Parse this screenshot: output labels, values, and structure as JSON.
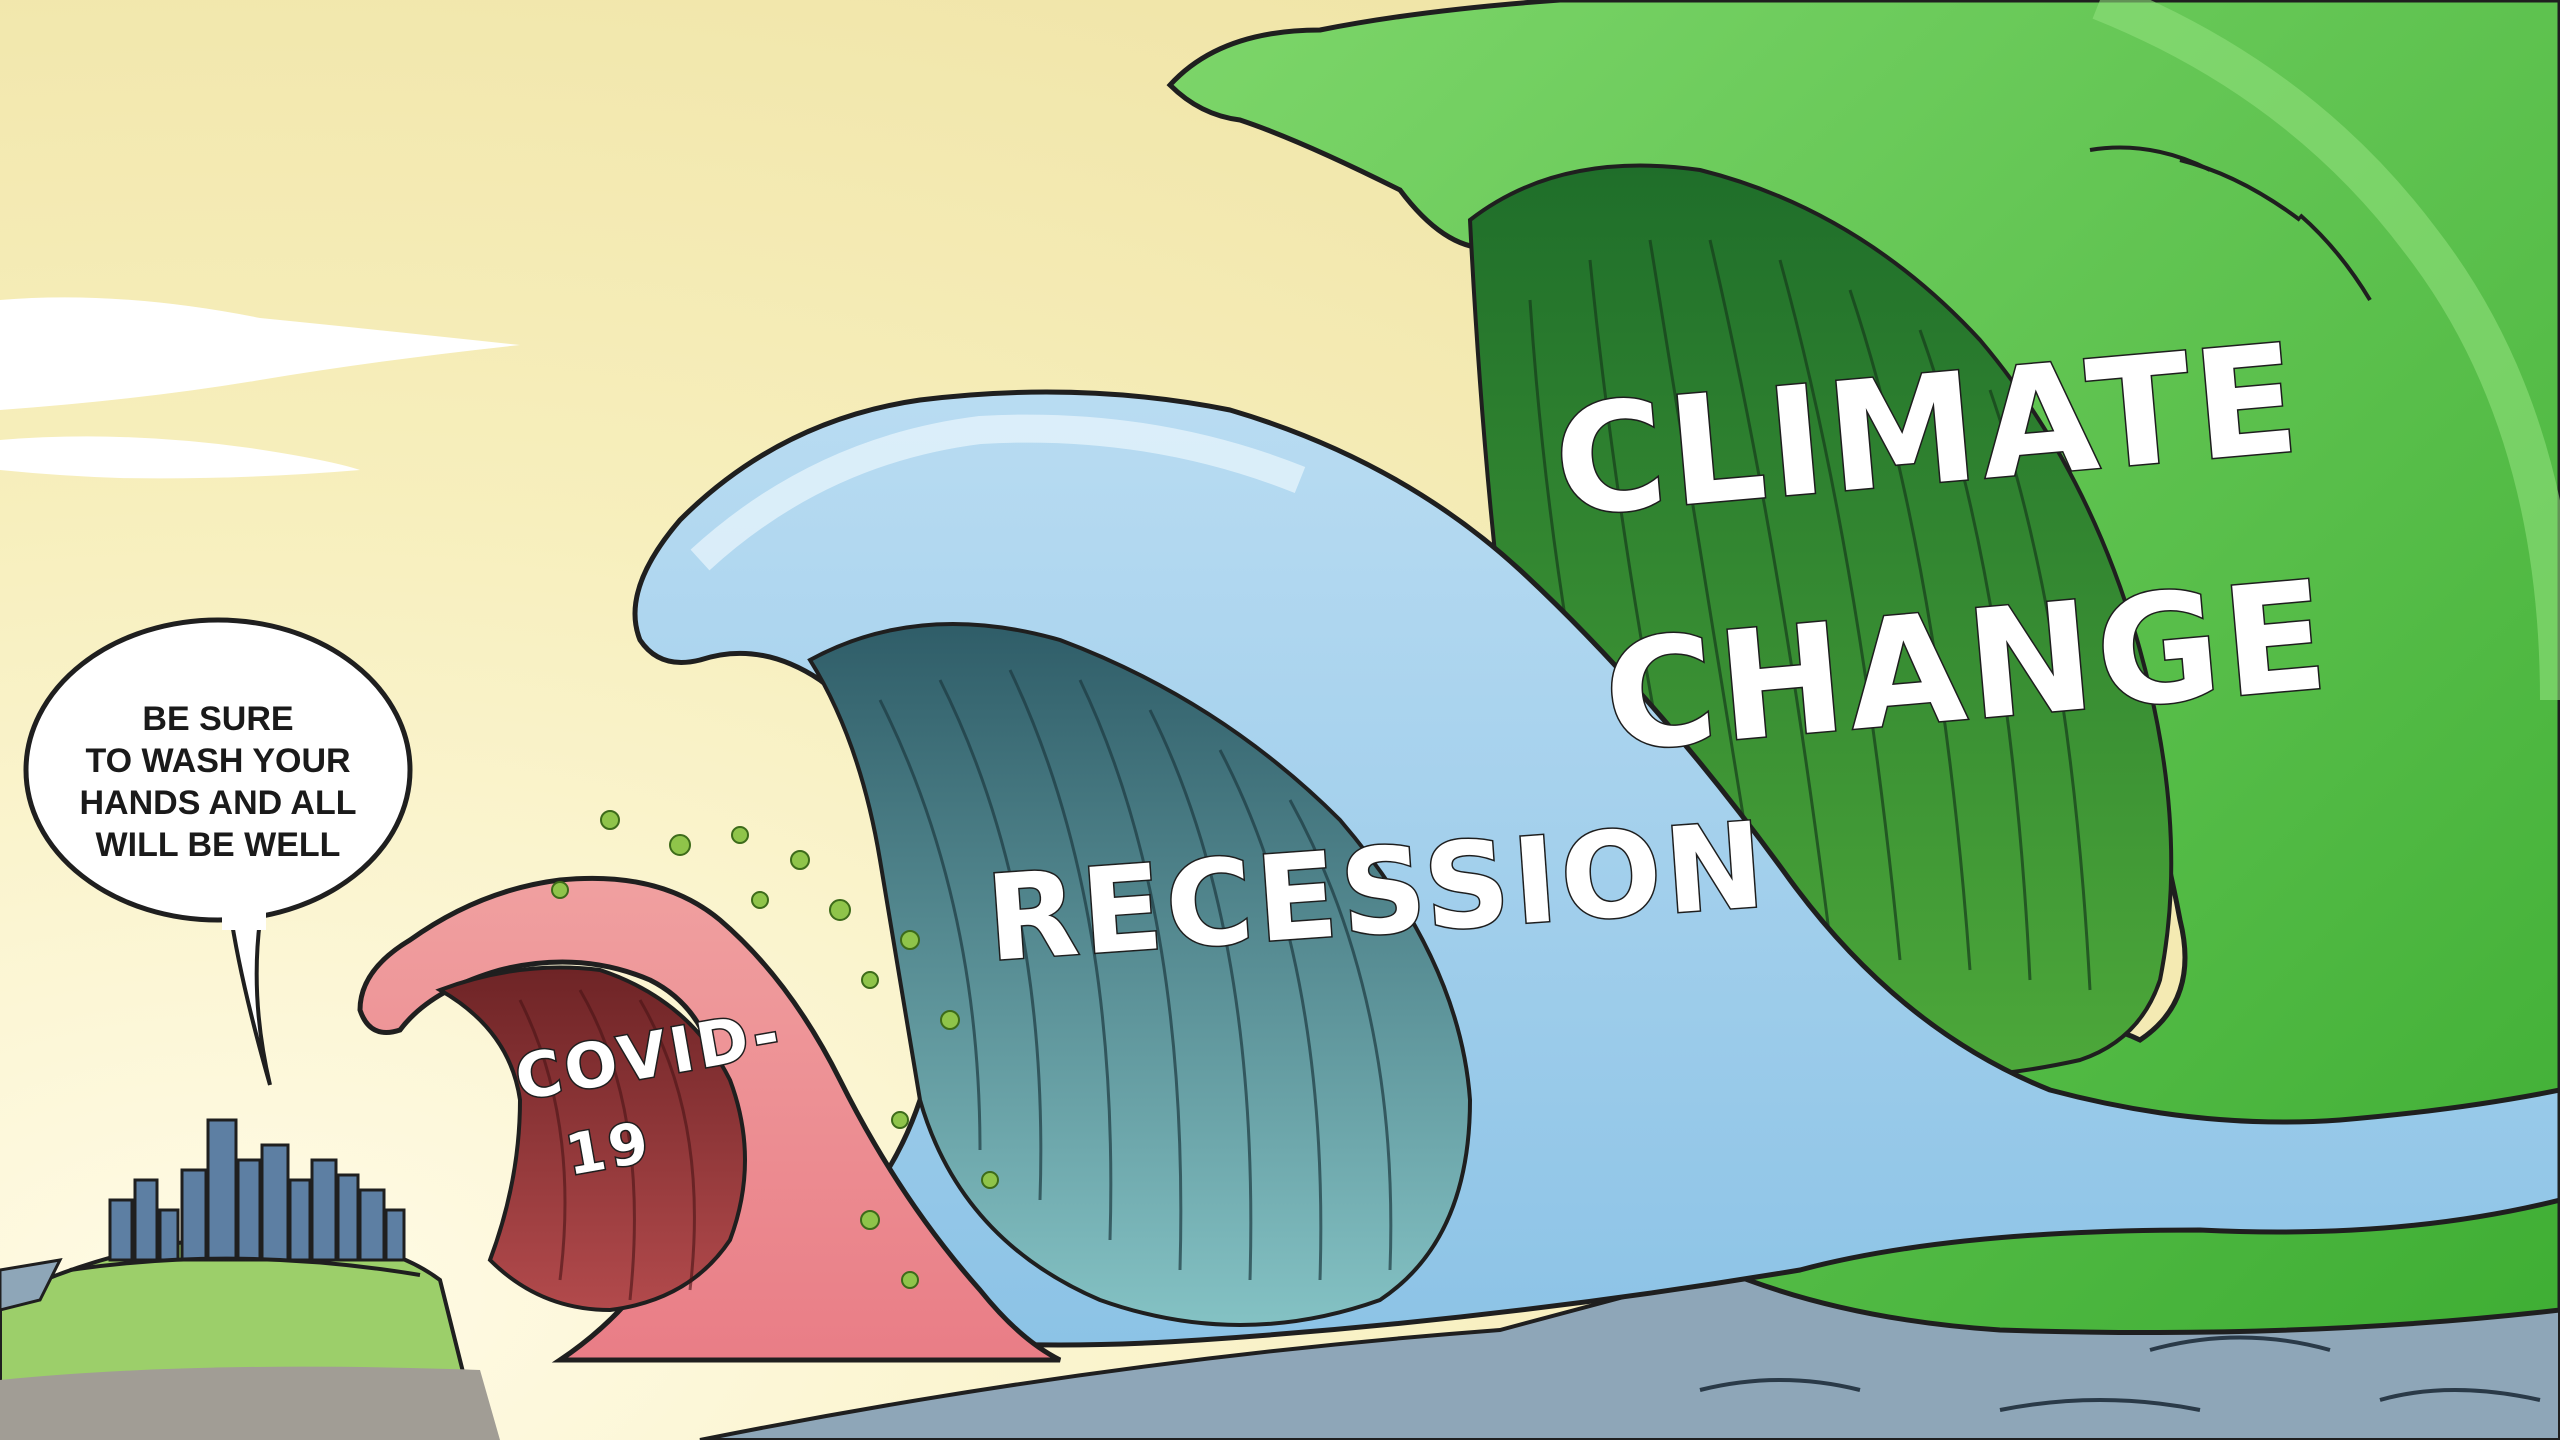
{
  "speech_bubble": {
    "lines": [
      "BE SURE",
      "TO WASH YOUR",
      "HANDS AND ALL",
      "WILL BE WELL"
    ]
  },
  "waves": {
    "covid": {
      "line1": "COVID-",
      "line2": "19",
      "color": "#e98b8b"
    },
    "recession": {
      "label": "RECESSION",
      "color": "#9ccbe8"
    },
    "climate": {
      "line1": "CLIMATE",
      "line2": "CHANGE",
      "color": "#5fc24a"
    }
  },
  "colors": {
    "sky": "#f7f1c4",
    "ground": "#9ccf6a",
    "sea": "#8ea6b8"
  }
}
